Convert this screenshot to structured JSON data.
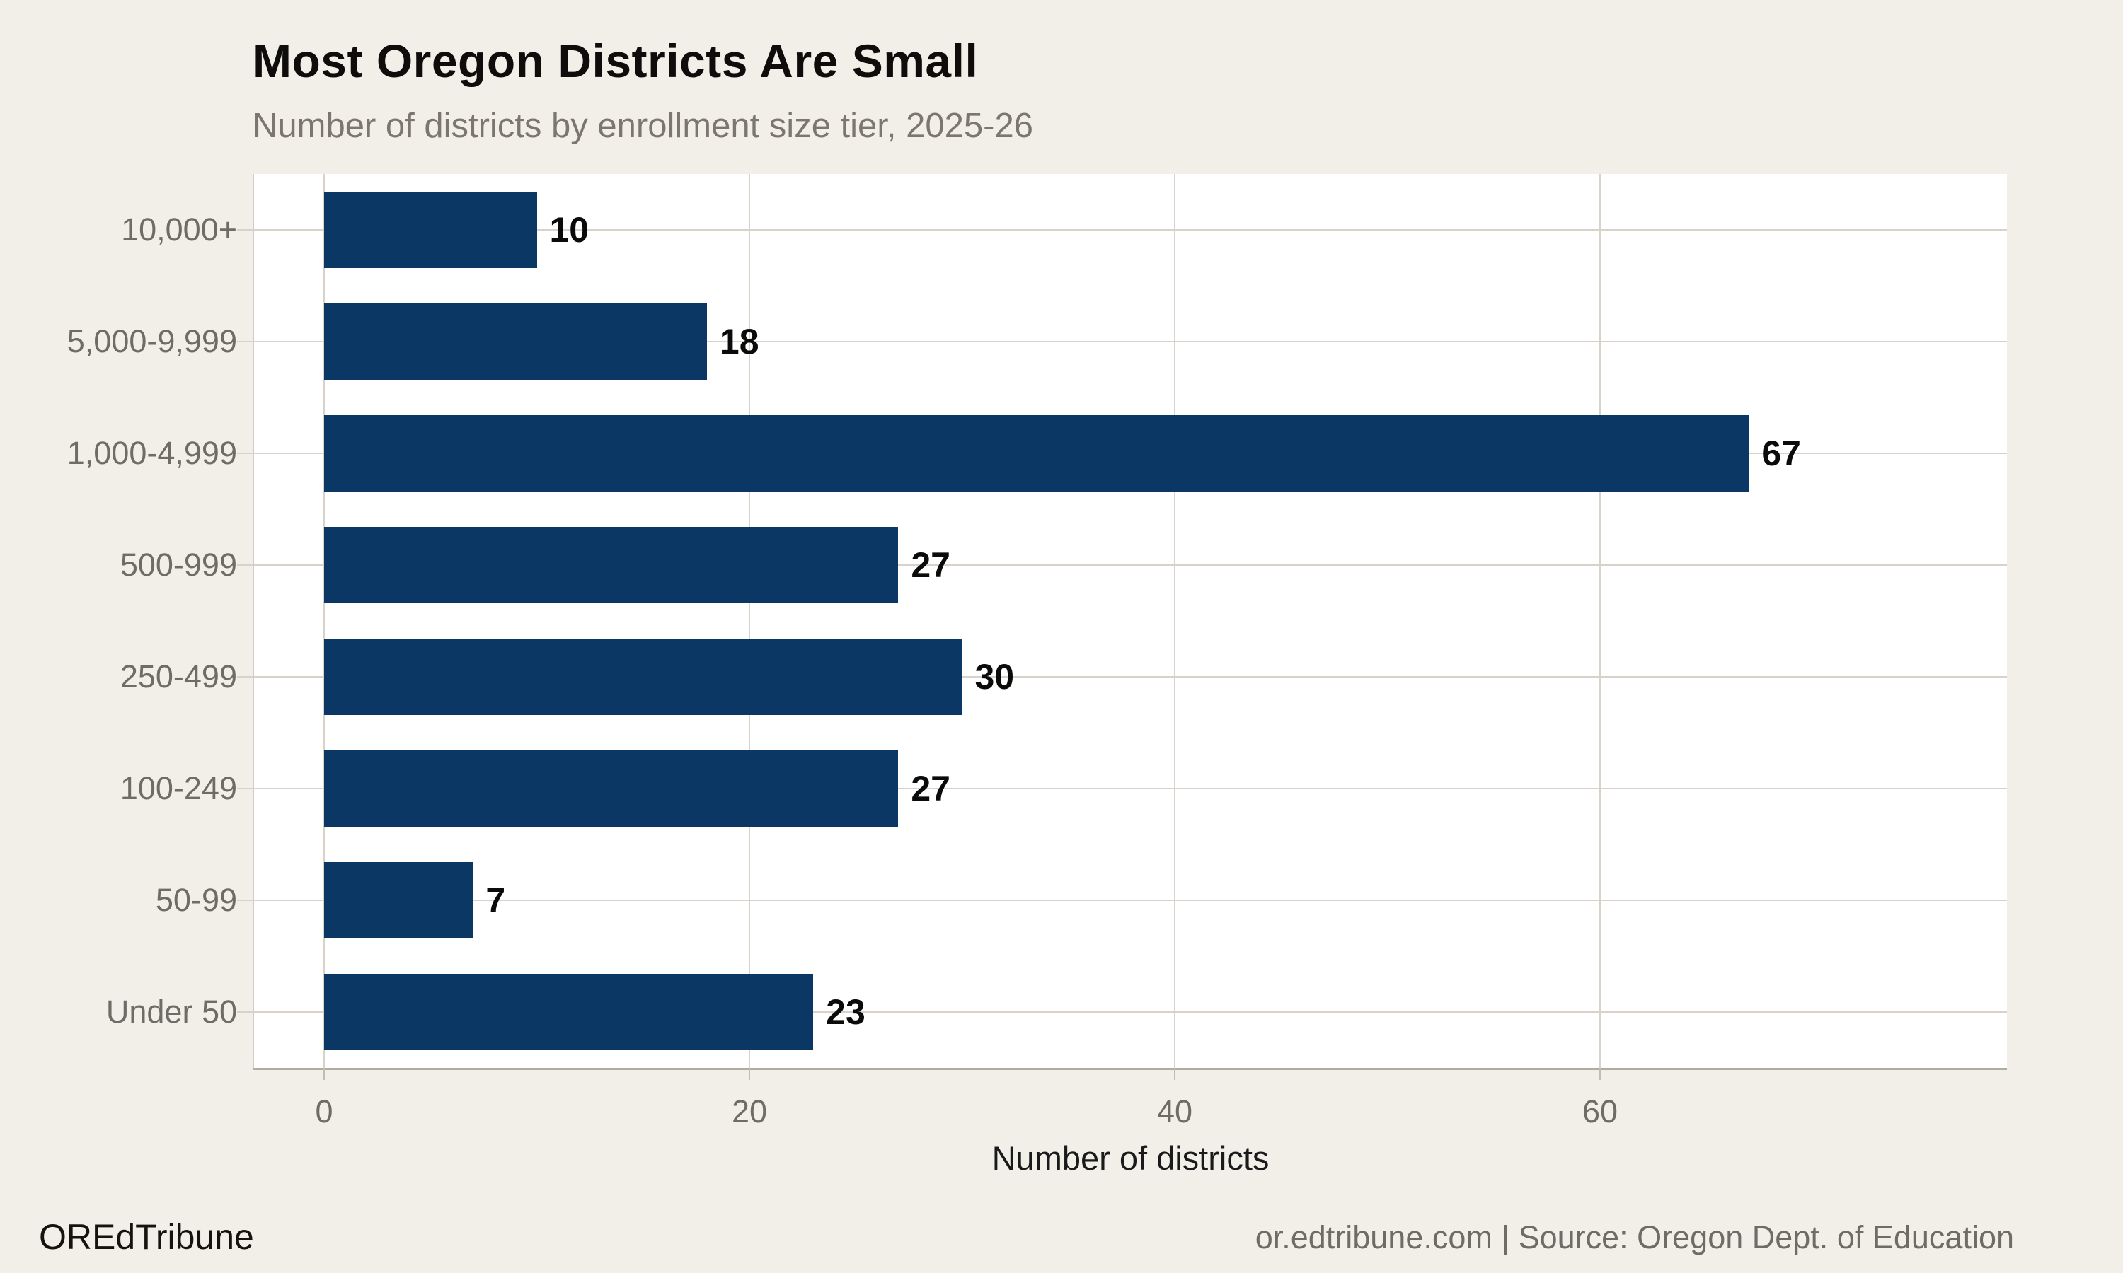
{
  "chart_data": {
    "type": "bar",
    "orientation": "horizontal",
    "title": "Most Oregon Districts Are Small",
    "subtitle": "Number of districts by enrollment size tier, 2025-26",
    "categories": [
      "10,000+",
      "5,000-9,999",
      "1,000-4,999",
      "500-999",
      "250-499",
      "100-249",
      "50-99",
      "Under 50"
    ],
    "values": [
      10,
      18,
      67,
      27,
      30,
      27,
      7,
      23
    ],
    "xlabel": "Number of districts",
    "x_ticks": [
      0,
      20,
      40,
      60
    ],
    "xlim": [
      -3.3,
      79.1
    ],
    "grid": "both",
    "legend": "none",
    "bar_color": "#0b3765",
    "plot_background": "#ffffff"
  },
  "page": {
    "background_color": "#f2efe9",
    "gridline_color": "#d8d2c9",
    "axis_line_color": "#b2aba2",
    "muted_text_color": "#6f6b65"
  },
  "footer": {
    "brand": "OREdTribune",
    "source": "or.edtribune.com | Source: Oregon Dept. of Education"
  }
}
